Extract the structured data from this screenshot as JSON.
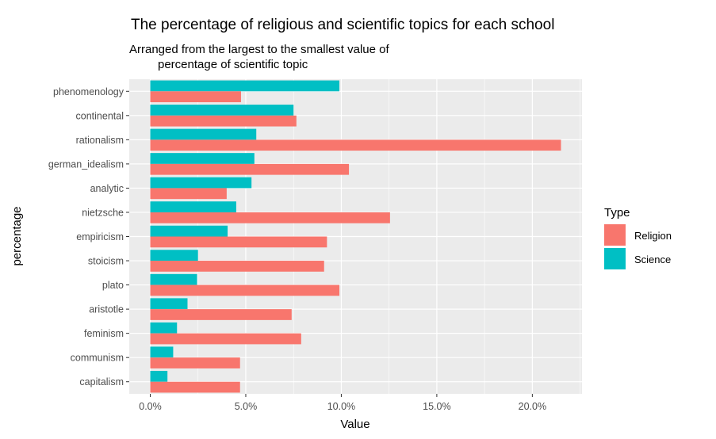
{
  "chart_data": {
    "type": "bar",
    "orientation": "horizontal",
    "title": "The percentage of religious and scientific topics for each school",
    "subtitle_lines": [
      "Arranged from the largest to the smallest value of",
      "percentage of scientific topic"
    ],
    "xlabel": "Value",
    "ylabel": "percentage",
    "xlim": [
      -0.011,
      0.226
    ],
    "x_ticks": [
      0.0,
      0.05,
      0.1,
      0.15,
      0.2
    ],
    "x_tick_labels": [
      "0.0%",
      "5.0%",
      "10.0%",
      "15.0%",
      "20.0%"
    ],
    "grid": true,
    "legend": {
      "title": "Type",
      "placement": "right"
    },
    "categories": [
      "phenomenology",
      "continental",
      "rationalism",
      "german_idealism",
      "analytic",
      "nietzsche",
      "empiricism",
      "stoicism",
      "plato",
      "aristotle",
      "feminism",
      "communism",
      "capitalism"
    ],
    "series": [
      {
        "name": "Religion",
        "color": "#F8766D",
        "values": [
          0.0475,
          0.0765,
          0.215,
          0.104,
          0.04,
          0.1255,
          0.0925,
          0.091,
          0.099,
          0.074,
          0.079,
          0.047,
          0.047
        ]
      },
      {
        "name": "Science",
        "color": "#00BFC4",
        "values": [
          0.099,
          0.075,
          0.0555,
          0.0545,
          0.053,
          0.045,
          0.0405,
          0.025,
          0.0245,
          0.0195,
          0.014,
          0.012,
          0.009
        ]
      }
    ]
  }
}
